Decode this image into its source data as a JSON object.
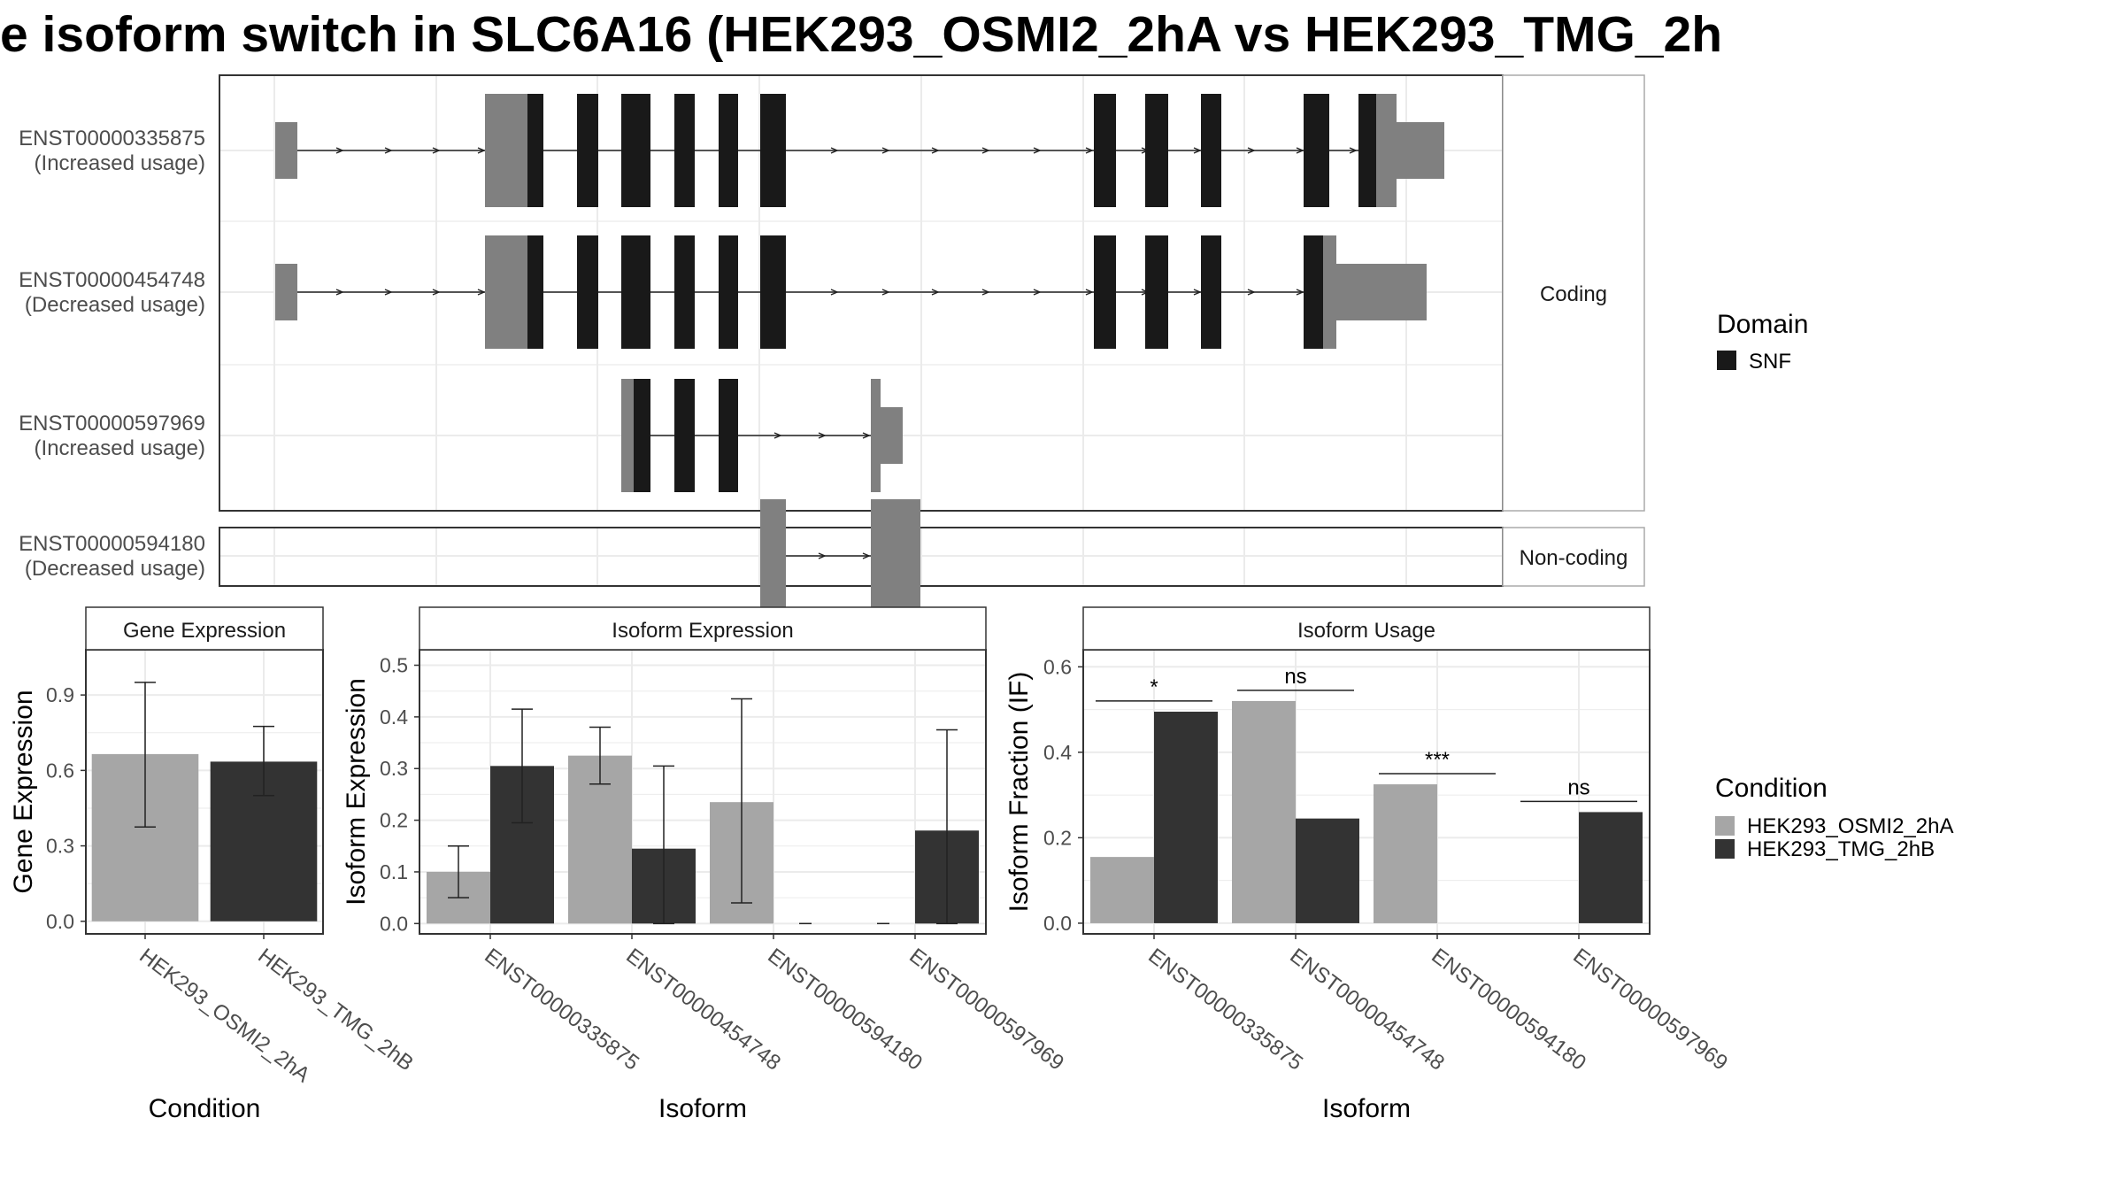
{
  "title": "e isoform switch in SLC6A16 (HEK293_OSMI2_2hA vs HEK293_TMG_2h",
  "colors": {
    "cond_a": "#a6a6a6",
    "cond_b": "#333333",
    "exon_utr": "#808080",
    "exon_domain": "#191919",
    "grid": "#ebebeb",
    "strip_bg": "#ffffff"
  },
  "structure": {
    "panels": [
      {
        "label": "Coding",
        "isoforms": [
          "ENST00000335875",
          "ENST00000454748",
          "ENST00000597969"
        ]
      },
      {
        "label": "Non-coding",
        "isoforms": [
          "ENST00000594180"
        ]
      }
    ],
    "isoform_labels": [
      {
        "id": "ENST00000335875",
        "usage": "(Increased usage)"
      },
      {
        "id": "ENST00000454748",
        "usage": "(Decreased usage)"
      },
      {
        "id": "ENST00000597969",
        "usage": "(Increased usage)"
      },
      {
        "id": "ENST00000594180",
        "usage": "(Decreased usage)"
      }
    ],
    "legend": {
      "title": "Domain",
      "items": [
        "SNF"
      ]
    }
  },
  "legend_condition": {
    "title": "Condition",
    "items": [
      "HEK293_OSMI2_2hA",
      "HEK293_TMG_2hB"
    ]
  },
  "chart_data": [
    {
      "type": "bar",
      "title": "Gene Expression",
      "xlabel": "Condition",
      "ylabel": "Gene Expression",
      "categories": [
        "HEK293_OSMI2_2hA",
        "HEK293_TMG_2hB"
      ],
      "values": [
        0.665,
        0.635
      ],
      "error_low": [
        0.375,
        0.5
      ],
      "error_high": [
        0.95,
        0.775
      ],
      "ylim": [
        -0.05,
        1.08
      ],
      "yticks": [
        0.0,
        0.3,
        0.6,
        0.9
      ]
    },
    {
      "type": "bar",
      "title": "Isoform Expression",
      "xlabel": "Isoform",
      "ylabel": "Isoform Expression",
      "categories": [
        "ENST00000335875",
        "ENST00000454748",
        "ENST00000594180",
        "ENST00000597969"
      ],
      "series": [
        {
          "name": "HEK293_OSMI2_2hA",
          "values": [
            0.1,
            0.325,
            0.235,
            0.0
          ],
          "error_low": [
            0.05,
            0.27,
            0.04,
            null
          ],
          "error_high": [
            0.15,
            0.38,
            0.435,
            null
          ]
        },
        {
          "name": "HEK293_TMG_2hB",
          "values": [
            0.305,
            0.145,
            0.0,
            0.18
          ],
          "error_low": [
            0.195,
            0.0,
            null,
            0.0
          ],
          "error_high": [
            0.415,
            0.305,
            null,
            0.375
          ]
        }
      ],
      "ylim": [
        -0.02,
        0.53
      ],
      "yticks": [
        0.0,
        0.1,
        0.2,
        0.3,
        0.4,
        0.5
      ]
    },
    {
      "type": "bar",
      "title": "Isoform Usage",
      "xlabel": "Isoform",
      "ylabel": "Isoform Fraction (IF)",
      "categories": [
        "ENST00000335875",
        "ENST00000454748",
        "ENST00000594180",
        "ENST00000597969"
      ],
      "series": [
        {
          "name": "HEK293_OSMI2_2hA",
          "values": [
            0.155,
            0.52,
            0.325,
            0.0
          ]
        },
        {
          "name": "HEK293_TMG_2hB",
          "values": [
            0.495,
            0.245,
            0.0,
            0.26
          ]
        }
      ],
      "significance": [
        "*",
        "ns",
        "***",
        "ns"
      ],
      "significance_y": [
        0.52,
        0.545,
        0.35,
        0.285
      ],
      "ylim": [
        -0.025,
        0.64
      ],
      "yticks": [
        0.0,
        0.2,
        0.4,
        0.6
      ]
    }
  ]
}
